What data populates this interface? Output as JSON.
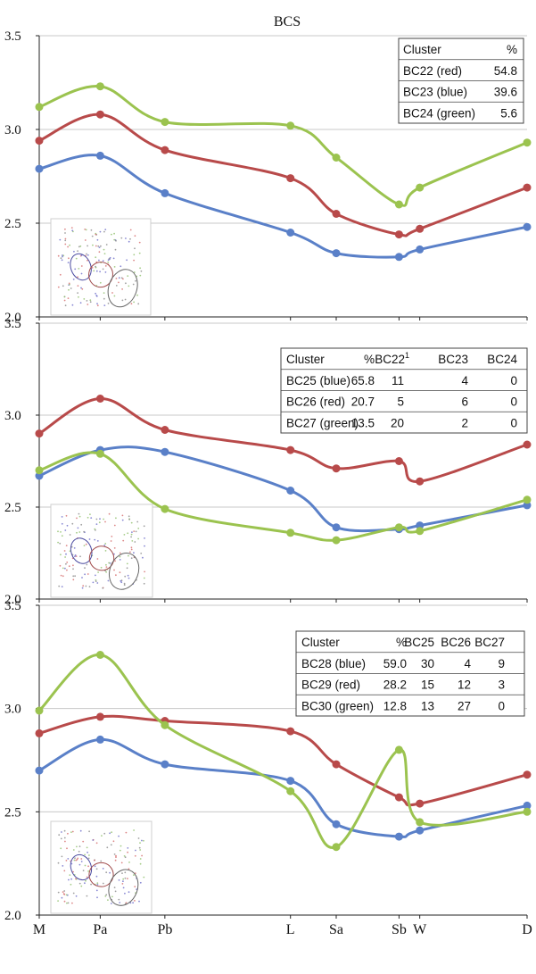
{
  "chart_data": [
    {
      "type": "line",
      "title": "BCS",
      "categories": [
        "M",
        "Pa",
        "Pb",
        "L",
        "Sa",
        "Sb",
        "W",
        "D"
      ],
      "x": [
        0,
        1.0,
        2.06,
        4.12,
        4.87,
        5.9,
        6.24,
        8.0
      ],
      "ylim": [
        2.0,
        3.5
      ],
      "yticks": [
        "2.0",
        "2.5",
        "3.0",
        "3.5"
      ],
      "grid": true,
      "series": [
        {
          "name": "BC22 (red)",
          "color": "#b84a4a",
          "values": [
            2.94,
            3.08,
            2.89,
            2.74,
            2.55,
            2.44,
            2.47,
            2.69
          ]
        },
        {
          "name": "BC23 (blue)",
          "color": "#5a80c8",
          "values": [
            2.79,
            2.86,
            2.66,
            2.45,
            2.34,
            2.32,
            2.36,
            2.48
          ]
        },
        {
          "name": "BC24 (green)",
          "color": "#9bc34f",
          "values": [
            3.12,
            3.23,
            3.04,
            3.02,
            2.85,
            2.6,
            2.69,
            2.93
          ]
        }
      ],
      "legend_table": {
        "headers": [
          "Cluster",
          "%"
        ],
        "rows": [
          [
            "BC22 (red)",
            "54.8"
          ],
          [
            "BC23 (blue)",
            "39.6"
          ],
          [
            "BC24 (green)",
            "5.6"
          ]
        ]
      }
    },
    {
      "type": "line",
      "categories": [
        "M",
        "Pa",
        "Pb",
        "L",
        "Sa",
        "Sb",
        "W",
        "D"
      ],
      "x": [
        0,
        1.0,
        2.06,
        4.12,
        4.87,
        5.9,
        6.24,
        8.0
      ],
      "ylim": [
        2.0,
        3.5
      ],
      "yticks": [
        "2.0",
        "2.5",
        "3.0",
        "3.5"
      ],
      "grid": true,
      "series": [
        {
          "name": "BC25 (blue)",
          "color": "#5a80c8",
          "values": [
            2.67,
            2.81,
            2.8,
            2.59,
            2.39,
            2.38,
            2.4,
            2.51
          ]
        },
        {
          "name": "BC26 (red)",
          "color": "#b84a4a",
          "values": [
            2.9,
            3.09,
            2.92,
            2.81,
            2.71,
            2.75,
            2.64,
            2.84
          ]
        },
        {
          "name": "BC27 (green)",
          "color": "#9bc34f",
          "values": [
            2.7,
            2.79,
            2.49,
            2.36,
            2.32,
            2.39,
            2.37,
            2.54
          ]
        }
      ],
      "legend_table": {
        "headers": [
          "Cluster",
          "%",
          "BC22",
          "BC23",
          "BC24"
        ],
        "header_sup": "1",
        "rows": [
          [
            "BC25 (blue)",
            "65.8",
            "11",
            "4",
            "0"
          ],
          [
            "BC26 (red)",
            "20.7",
            "5",
            "6",
            "0"
          ],
          [
            "BC27 (green)",
            "13.5",
            "20",
            "2",
            "0"
          ]
        ]
      }
    },
    {
      "type": "line",
      "categories": [
        "M",
        "Pa",
        "Pb",
        "L",
        "Sa",
        "Sb",
        "W",
        "D"
      ],
      "x": [
        0,
        1.0,
        2.06,
        4.12,
        4.87,
        5.9,
        6.24,
        8.0
      ],
      "ylim": [
        2.0,
        3.5
      ],
      "yticks": [
        "2.0",
        "2.5",
        "3.0",
        "3.5"
      ],
      "grid": true,
      "xlabels_shown": true,
      "series": [
        {
          "name": "BC28 (blue)",
          "color": "#5a80c8",
          "values": [
            2.7,
            2.85,
            2.73,
            2.65,
            2.44,
            2.38,
            2.41,
            2.53
          ]
        },
        {
          "name": "BC29 (red)",
          "color": "#b84a4a",
          "values": [
            2.88,
            2.96,
            2.94,
            2.89,
            2.73,
            2.57,
            2.54,
            2.68
          ]
        },
        {
          "name": "BC30 (green)",
          "color": "#9bc34f",
          "values": [
            2.99,
            3.26,
            2.92,
            2.6,
            2.33,
            2.8,
            2.45,
            2.5
          ]
        }
      ],
      "legend_table": {
        "headers": [
          "Cluster",
          "%",
          "BC25",
          "BC26",
          "BC27"
        ],
        "rows": [
          [
            "BC28 (blue)",
            "59.0",
            "30",
            "4",
            "9"
          ],
          [
            "BC29 (red)",
            "28.2",
            "15",
            "12",
            "3"
          ],
          [
            "BC30 (green)",
            "12.8",
            "13",
            "27",
            "0"
          ]
        ]
      }
    }
  ]
}
